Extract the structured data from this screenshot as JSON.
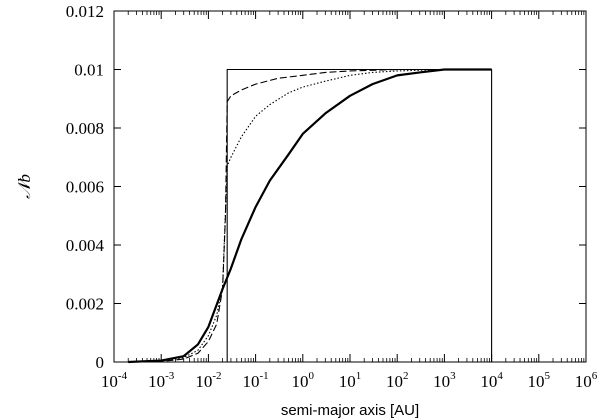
{
  "chart_data": {
    "type": "line",
    "title": "",
    "xlabel": "semi-major axis [AU]",
    "ylabel": "𝒩b",
    "x_scale": "log10",
    "xlim": [
      0.0001,
      1000000
    ],
    "ylim": [
      0,
      0.012
    ],
    "xtick_labels": [
      {
        "base": "10",
        "exp": "-4"
      },
      {
        "base": "10",
        "exp": "-3"
      },
      {
        "base": "10",
        "exp": "-2"
      },
      {
        "base": "10",
        "exp": "-1"
      },
      {
        "base": "10",
        "exp": "0"
      },
      {
        "base": "10",
        "exp": "1"
      },
      {
        "base": "10",
        "exp": "2"
      },
      {
        "base": "10",
        "exp": "3"
      },
      {
        "base": "10",
        "exp": "4"
      },
      {
        "base": "10",
        "exp": "5"
      },
      {
        "base": "10",
        "exp": "6"
      }
    ],
    "yticks": [
      0,
      0.002,
      0.004,
      0.006,
      0.008,
      0.01,
      0.012
    ],
    "ytick_labels": [
      "0",
      "0.002",
      "0.004",
      "0.006",
      "0.008",
      "0.01",
      "0.012"
    ],
    "grid": false,
    "legend": "none",
    "series": [
      {
        "style": "solid-thin",
        "x": [
          0.025,
          0.025,
          10000,
          10000
        ],
        "y": [
          0,
          0.01,
          0.01,
          0
        ]
      },
      {
        "style": "dashed",
        "x": [
          0.0003,
          0.001,
          0.003,
          0.006,
          0.01,
          0.015,
          0.02,
          0.023,
          0.025,
          0.03,
          0.05,
          0.1,
          0.3,
          1,
          3,
          10,
          100,
          1000,
          10000
        ],
        "y": [
          0,
          2e-05,
          0.0001,
          0.0003,
          0.0007,
          0.0013,
          0.0025,
          0.005,
          0.0089,
          0.0091,
          0.0093,
          0.0095,
          0.0097,
          0.0098,
          0.0099,
          0.00995,
          0.01,
          0.01,
          0.01
        ]
      },
      {
        "style": "dotted",
        "x": [
          0.0003,
          0.001,
          0.003,
          0.006,
          0.01,
          0.015,
          0.02,
          0.025,
          0.03,
          0.05,
          0.1,
          0.2,
          0.5,
          1,
          3,
          10,
          30,
          100,
          1000,
          10000
        ],
        "y": [
          0,
          3e-05,
          0.00015,
          0.0004,
          0.0009,
          0.0016,
          0.0026,
          0.0067,
          0.007,
          0.0077,
          0.0084,
          0.0088,
          0.0092,
          0.0094,
          0.0096,
          0.0098,
          0.0099,
          0.00995,
          0.01,
          0.01
        ]
      },
      {
        "style": "solid-thick",
        "x": [
          0.0002,
          0.001,
          0.003,
          0.006,
          0.01,
          0.02,
          0.03,
          0.05,
          0.1,
          0.2,
          0.5,
          1,
          3,
          10,
          30,
          100,
          300,
          1000,
          10000
        ],
        "y": [
          0,
          5e-05,
          0.0002,
          0.0006,
          0.0012,
          0.0025,
          0.0032,
          0.0042,
          0.0053,
          0.0062,
          0.0071,
          0.0078,
          0.0085,
          0.0091,
          0.0095,
          0.0098,
          0.0099,
          0.01,
          0.01
        ]
      }
    ]
  }
}
